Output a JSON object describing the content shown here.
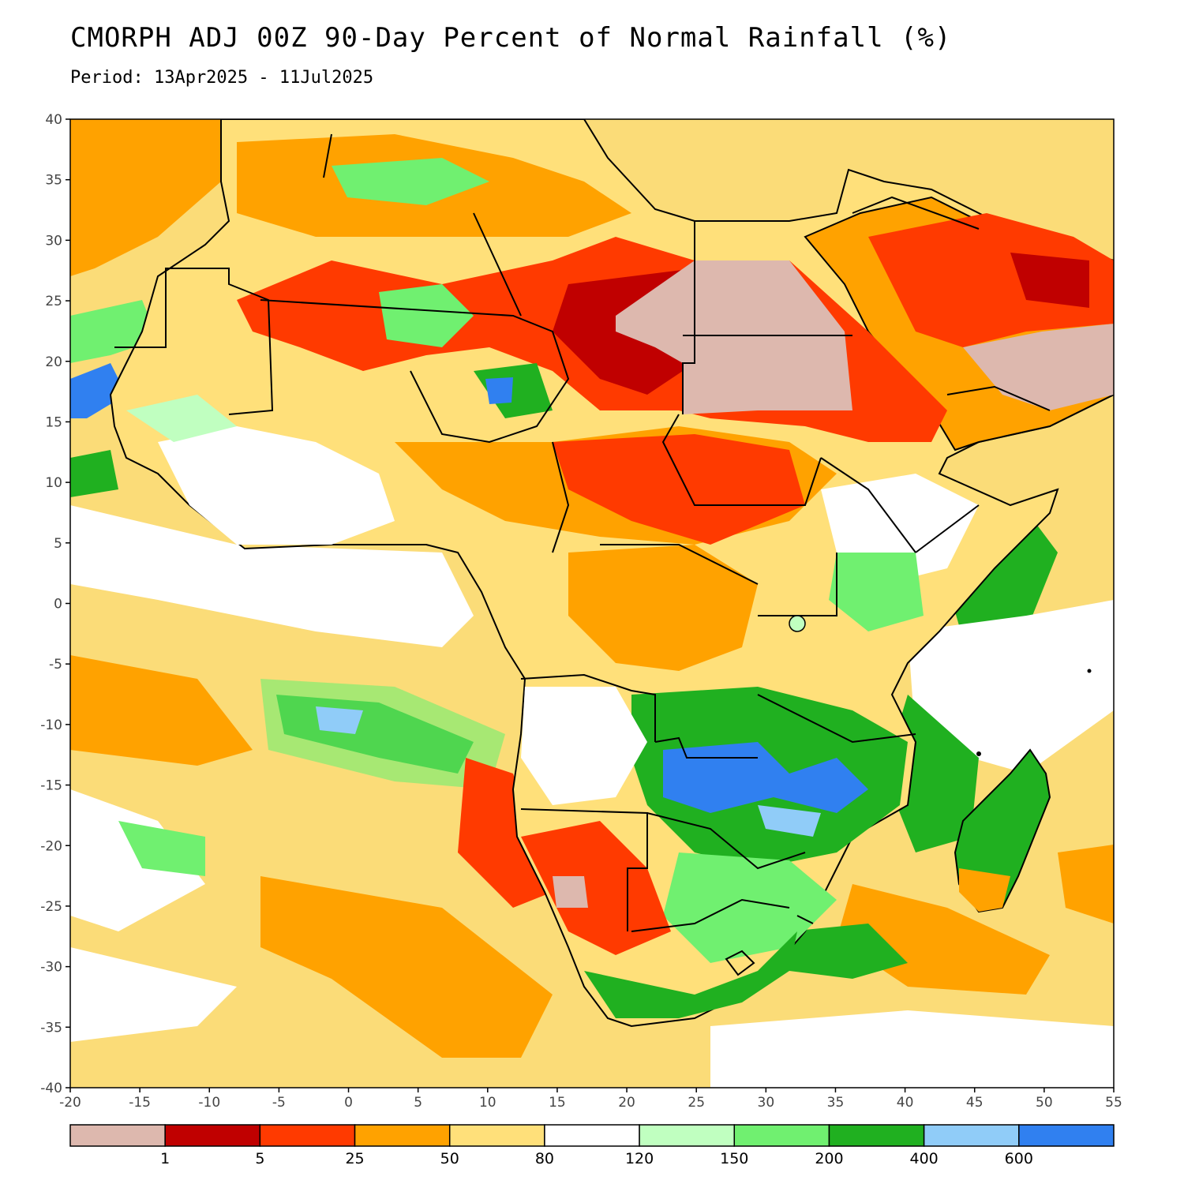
{
  "title": "CMORPH ADJ 00Z 90-Day Percent of Normal Rainfall (%)",
  "subtitle": "Period: 13Apr2025 - 11Jul2025",
  "map": {
    "lon_range": [
      -20,
      55
    ],
    "lat_range": [
      -40,
      40
    ],
    "lon_ticks": [
      "-20",
      "-15",
      "-10",
      "-5",
      "0",
      "5",
      "10",
      "15",
      "20",
      "25",
      "30",
      "35",
      "40",
      "45",
      "50",
      "55"
    ],
    "lat_ticks": [
      "40",
      "35",
      "30",
      "25",
      "20",
      "15",
      "10",
      "5",
      "0",
      "-5",
      "-10",
      "-15",
      "-20",
      "-25",
      "-30",
      "-35",
      "-40"
    ],
    "ocean_color": "#fbdc78",
    "land_outline_color": "#000000"
  },
  "legend": {
    "colors": [
      "#ddb8ae",
      "#c00000",
      "#ff3a00",
      "#ffa200",
      "#ffe07a",
      "#ffffff",
      "#c0ffc0",
      "#70f070",
      "#20b020",
      "#90ccf8",
      "#3080f0"
    ],
    "labels": [
      "1",
      "5",
      "25",
      "50",
      "80",
      "120",
      "150",
      "200",
      "400",
      "600"
    ]
  }
}
